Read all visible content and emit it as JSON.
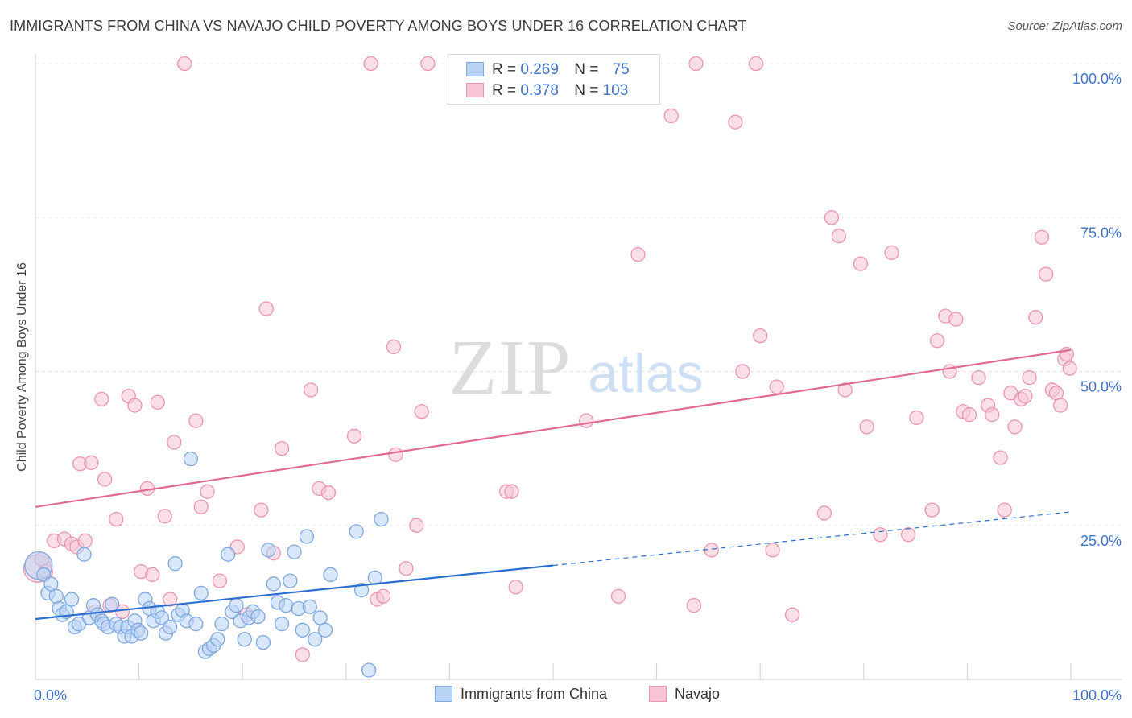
{
  "title": "IMMIGRANTS FROM CHINA VS NAVAJO CHILD POVERTY AMONG BOYS UNDER 16 CORRELATION CHART",
  "source": "Source: ZipAtlas.com",
  "watermark": {
    "zip": "ZIP",
    "atlas": "atlas"
  },
  "legend": {
    "r_label": "R =",
    "n_label": "N =",
    "rows": [
      {
        "r": "0.269",
        "n": "75"
      },
      {
        "r": "0.378",
        "n": "103"
      }
    ]
  },
  "colors": {
    "china_fill": "#b9d3f5",
    "china_stroke": "#7fa7df",
    "china_line": "#2a6fd0",
    "navajo_fill": "#f8c4d4",
    "navajo_stroke": "#eb94b1",
    "navajo_line": "#e06a94",
    "tick_label": "#3f73c8"
  },
  "chart_data": {
    "type": "scatter",
    "ylabel": "Child Poverty Among Boys Under 16",
    "xlim": [
      0,
      100
    ],
    "ylim": [
      0,
      100
    ],
    "x_tick_labels": [
      {
        "v": 0,
        "label": "0.0%"
      },
      {
        "v": 100,
        "label": "100.0%"
      }
    ],
    "y_tick_labels": [
      {
        "v": 25,
        "label": "25.0%"
      },
      {
        "v": 50,
        "label": "50.0%"
      },
      {
        "v": 75,
        "label": "75.0%"
      },
      {
        "v": 100,
        "label": "100.0%"
      }
    ],
    "series": [
      {
        "name": "Immigrants from China",
        "trend": {
          "x0": 0,
          "y0": 9.8,
          "x1": 50,
          "y1": 18.5,
          "dashed_to_x": 100,
          "dashed_to_y": 27.2
        },
        "points": [
          [
            0.3,
            18.5
          ],
          [
            0.8,
            17.0
          ],
          [
            1.2,
            14.0
          ],
          [
            1.5,
            15.5
          ],
          [
            2.0,
            13.5
          ],
          [
            2.3,
            11.5
          ],
          [
            2.6,
            10.5
          ],
          [
            3.0,
            11.0
          ],
          [
            3.5,
            13.0
          ],
          [
            3.8,
            8.5
          ],
          [
            4.2,
            9.0
          ],
          [
            4.7,
            20.3
          ],
          [
            5.2,
            10.0
          ],
          [
            5.6,
            12.0
          ],
          [
            6.0,
            10.5
          ],
          [
            6.4,
            9.5
          ],
          [
            6.6,
            9.0
          ],
          [
            7.0,
            8.5
          ],
          [
            7.4,
            12.2
          ],
          [
            7.8,
            9.0
          ],
          [
            8.2,
            8.5
          ],
          [
            8.6,
            7.0
          ],
          [
            8.9,
            8.5
          ],
          [
            9.3,
            7.0
          ],
          [
            9.6,
            9.5
          ],
          [
            9.9,
            8.0
          ],
          [
            10.2,
            7.5
          ],
          [
            10.6,
            13.0
          ],
          [
            11.0,
            11.5
          ],
          [
            11.4,
            9.5
          ],
          [
            11.8,
            11.0
          ],
          [
            12.2,
            10.0
          ],
          [
            12.6,
            7.5
          ],
          [
            13.0,
            8.5
          ],
          [
            13.5,
            18.8
          ],
          [
            13.8,
            10.5
          ],
          [
            14.2,
            11.2
          ],
          [
            14.6,
            9.5
          ],
          [
            15.0,
            35.8
          ],
          [
            15.5,
            9.0
          ],
          [
            16.0,
            14.0
          ],
          [
            16.4,
            4.5
          ],
          [
            16.8,
            5.0
          ],
          [
            17.2,
            5.5
          ],
          [
            17.6,
            6.5
          ],
          [
            18.0,
            9.0
          ],
          [
            18.6,
            20.3
          ],
          [
            19.0,
            11.0
          ],
          [
            19.4,
            12.0
          ],
          [
            19.8,
            9.5
          ],
          [
            20.2,
            6.5
          ],
          [
            20.6,
            10.0
          ],
          [
            21.0,
            11.0
          ],
          [
            21.5,
            10.2
          ],
          [
            22.0,
            6.0
          ],
          [
            22.5,
            21.0
          ],
          [
            23.0,
            15.5
          ],
          [
            23.4,
            12.5
          ],
          [
            23.8,
            9.0
          ],
          [
            24.2,
            12.0
          ],
          [
            24.6,
            16.0
          ],
          [
            25.0,
            20.7
          ],
          [
            25.4,
            11.5
          ],
          [
            25.8,
            8.0
          ],
          [
            26.2,
            23.2
          ],
          [
            26.5,
            11.8
          ],
          [
            27.0,
            6.5
          ],
          [
            27.5,
            10.0
          ],
          [
            28.0,
            8.0
          ],
          [
            28.5,
            17.0
          ],
          [
            31.0,
            24.0
          ],
          [
            31.5,
            14.5
          ],
          [
            32.2,
            1.5
          ],
          [
            32.8,
            16.5
          ],
          [
            33.4,
            26.0
          ]
        ]
      },
      {
        "name": "Navajo",
        "trend": {
          "x0": 0,
          "y0": 28.0,
          "x1": 100,
          "y1": 53.5
        },
        "points": [
          [
            0.2,
            18.0
          ],
          [
            0.6,
            19.5
          ],
          [
            1.0,
            17.5
          ],
          [
            1.8,
            22.5
          ],
          [
            2.8,
            22.8
          ],
          [
            3.5,
            22.0
          ],
          [
            4.0,
            21.5
          ],
          [
            4.3,
            35.0
          ],
          [
            4.8,
            22.5
          ],
          [
            5.4,
            35.2
          ],
          [
            5.8,
            11.0
          ],
          [
            6.4,
            45.5
          ],
          [
            6.7,
            32.5
          ],
          [
            7.2,
            12.0
          ],
          [
            7.8,
            26.0
          ],
          [
            8.4,
            11.0
          ],
          [
            9.0,
            46.0
          ],
          [
            9.6,
            44.5
          ],
          [
            10.2,
            17.5
          ],
          [
            10.8,
            31.0
          ],
          [
            11.3,
            17.0
          ],
          [
            11.8,
            45.0
          ],
          [
            12.5,
            26.5
          ],
          [
            13.0,
            13.0
          ],
          [
            13.4,
            38.5
          ],
          [
            14.4,
            100.0
          ],
          [
            15.5,
            42.0
          ],
          [
            16.0,
            28.0
          ],
          [
            16.6,
            30.5
          ],
          [
            17.8,
            16.0
          ],
          [
            19.5,
            21.5
          ],
          [
            20.4,
            10.5
          ],
          [
            21.8,
            27.5
          ],
          [
            22.3,
            60.2
          ],
          [
            23.0,
            20.5
          ],
          [
            23.8,
            37.5
          ],
          [
            25.8,
            4.0
          ],
          [
            26.6,
            47.0
          ],
          [
            27.4,
            31.0
          ],
          [
            28.3,
            30.3
          ],
          [
            30.8,
            39.5
          ],
          [
            32.4,
            100.0
          ],
          [
            33.0,
            13.0
          ],
          [
            33.6,
            13.5
          ],
          [
            34.6,
            54.0
          ],
          [
            34.8,
            36.5
          ],
          [
            35.8,
            18.0
          ],
          [
            36.8,
            25.0
          ],
          [
            37.3,
            43.5
          ],
          [
            37.9,
            100.0
          ],
          [
            45.5,
            30.5
          ],
          [
            46.0,
            30.5
          ],
          [
            46.4,
            15.0
          ],
          [
            53.2,
            42.0
          ],
          [
            56.3,
            13.5
          ],
          [
            58.2,
            69.0
          ],
          [
            61.4,
            91.5
          ],
          [
            63.6,
            12.0
          ],
          [
            63.8,
            100.0
          ],
          [
            65.3,
            21.0
          ],
          [
            67.6,
            90.5
          ],
          [
            68.3,
            50.0
          ],
          [
            69.6,
            100.0
          ],
          [
            70.0,
            55.8
          ],
          [
            71.2,
            21.0
          ],
          [
            71.6,
            47.5
          ],
          [
            73.1,
            10.5
          ],
          [
            76.2,
            27.0
          ],
          [
            76.9,
            75.0
          ],
          [
            77.6,
            72.0
          ],
          [
            78.2,
            47.0
          ],
          [
            79.7,
            67.5
          ],
          [
            80.3,
            41.0
          ],
          [
            81.6,
            23.5
          ],
          [
            82.7,
            69.3
          ],
          [
            84.3,
            23.5
          ],
          [
            85.1,
            42.5
          ],
          [
            86.6,
            27.5
          ],
          [
            87.1,
            55.0
          ],
          [
            87.9,
            59.0
          ],
          [
            88.3,
            50.0
          ],
          [
            88.9,
            58.5
          ],
          [
            89.6,
            43.5
          ],
          [
            90.2,
            43.0
          ],
          [
            91.1,
            49.0
          ],
          [
            92.0,
            44.5
          ],
          [
            92.4,
            43.0
          ],
          [
            93.2,
            36.0
          ],
          [
            93.6,
            27.5
          ],
          [
            94.2,
            46.5
          ],
          [
            94.6,
            41.0
          ],
          [
            95.2,
            45.5
          ],
          [
            95.6,
            46.0
          ],
          [
            96.0,
            49.0
          ],
          [
            96.6,
            58.8
          ],
          [
            97.2,
            71.8
          ],
          [
            97.6,
            65.8
          ],
          [
            98.2,
            47.0
          ],
          [
            98.6,
            46.5
          ],
          [
            99.0,
            44.5
          ],
          [
            99.4,
            52.0
          ],
          [
            99.6,
            52.8
          ],
          [
            99.9,
            50.5
          ]
        ]
      }
    ]
  }
}
